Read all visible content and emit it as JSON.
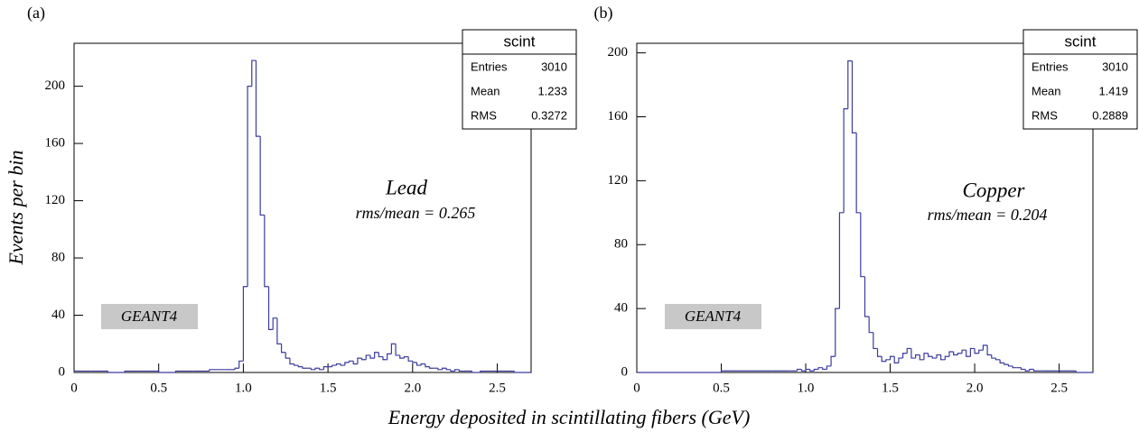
{
  "figure": {
    "x_label": "Energy deposited in scintillating fibers (GeV)",
    "y_label": "Events per bin"
  },
  "chart_data": [
    {
      "type": "histogram",
      "panel_label": "(a)",
      "annotation": "Lead",
      "sub_annotation": "rms/mean = 0.265",
      "tag": "GEANT4",
      "color": "#3b3b9e",
      "stats": {
        "title": "scint",
        "rows": [
          {
            "name": "Entries",
            "value": 3010
          },
          {
            "name": "Mean",
            "value": 1.233
          },
          {
            "name": "RMS",
            "value": 0.3272
          }
        ]
      },
      "bins": [
        0,
        0.1,
        0.2,
        0.3,
        0.4,
        0.5,
        0.6,
        0.7,
        0.8,
        0.9,
        0.925,
        0.95,
        0.975,
        1.0,
        1.025,
        1.05,
        1.075,
        1.1,
        1.125,
        1.15,
        1.175,
        1.2,
        1.225,
        1.25,
        1.275,
        1.3,
        1.325,
        1.35,
        1.375,
        1.4,
        1.425,
        1.45,
        1.475,
        1.5,
        1.525,
        1.55,
        1.575,
        1.6,
        1.625,
        1.65,
        1.675,
        1.7,
        1.725,
        1.75,
        1.775,
        1.8,
        1.825,
        1.85,
        1.875,
        1.9,
        1.925,
        1.95,
        1.975,
        2.0,
        2.025,
        2.05,
        2.075,
        2.1,
        2.125,
        2.15,
        2.175,
        2.2,
        2.225,
        2.25,
        2.275,
        2.3,
        2.325,
        2.35,
        2.375,
        2.4,
        2.5,
        2.6,
        2.7
      ],
      "values": [
        1,
        1,
        0,
        1,
        1,
        0,
        1,
        1,
        2,
        2,
        2,
        3,
        8,
        60,
        200,
        218,
        165,
        110,
        60,
        30,
        38,
        20,
        14,
        10,
        6,
        5,
        4,
        3,
        3,
        2,
        3,
        2,
        4,
        4,
        5,
        6,
        5,
        7,
        8,
        6,
        10,
        9,
        12,
        10,
        14,
        11,
        9,
        13,
        20,
        12,
        10,
        11,
        8,
        7,
        5,
        6,
        4,
        3,
        3,
        2,
        3,
        2,
        1,
        2,
        1,
        1,
        1,
        0,
        0,
        1,
        1,
        0
      ],
      "xlim": [
        0,
        2.7
      ],
      "ylim": [
        0,
        230
      ],
      "xticks": [
        0,
        0.5,
        {
          "value": 1,
          "label": "1.0"
        },
        1.5,
        {
          "value": 2,
          "label": "2.0"
        },
        2.5
      ],
      "yticks": [
        0,
        40,
        80,
        120,
        160,
        200
      ]
    },
    {
      "type": "histogram",
      "panel_label": "(b)",
      "annotation": "Copper",
      "sub_annotation": "rms/mean = 0.204",
      "tag": "GEANT4",
      "color": "#3b3b9e",
      "stats": {
        "title": "scint",
        "rows": [
          {
            "name": "Entries",
            "value": 3010
          },
          {
            "name": "Mean",
            "value": 1.419
          },
          {
            "name": "RMS",
            "value": 0.2889
          }
        ]
      },
      "bins": [
        0,
        0.1,
        0.2,
        0.3,
        0.4,
        0.5,
        0.6,
        0.7,
        0.8,
        0.9,
        0.925,
        0.95,
        0.975,
        1.0,
        1.025,
        1.05,
        1.075,
        1.1,
        1.125,
        1.15,
        1.175,
        1.2,
        1.225,
        1.25,
        1.275,
        1.3,
        1.325,
        1.35,
        1.375,
        1.4,
        1.425,
        1.45,
        1.475,
        1.5,
        1.525,
        1.55,
        1.575,
        1.6,
        1.625,
        1.65,
        1.675,
        1.7,
        1.725,
        1.75,
        1.775,
        1.8,
        1.825,
        1.85,
        1.875,
        1.9,
        1.925,
        1.95,
        1.975,
        2.0,
        2.025,
        2.05,
        2.075,
        2.1,
        2.125,
        2.15,
        2.175,
        2.2,
        2.225,
        2.25,
        2.275,
        2.3,
        2.325,
        2.35,
        2.375,
        2.4,
        2.5,
        2.6,
        2.7
      ],
      "values": [
        0,
        0,
        0,
        0,
        0,
        1,
        1,
        1,
        1,
        1,
        1,
        2,
        1,
        2,
        1,
        2,
        3,
        2,
        4,
        10,
        40,
        100,
        165,
        195,
        150,
        100,
        60,
        35,
        25,
        15,
        10,
        7,
        8,
        10,
        6,
        9,
        12,
        15,
        9,
        11,
        8,
        12,
        10,
        9,
        11,
        8,
        10,
        13,
        11,
        12,
        14,
        10,
        15,
        12,
        14,
        17,
        11,
        9,
        8,
        6,
        5,
        4,
        3,
        3,
        2,
        1,
        2,
        1,
        1,
        1,
        1,
        0
      ],
      "xlim": [
        0,
        2.7
      ],
      "ylim": [
        0,
        206
      ],
      "xticks": [
        0,
        0.5,
        {
          "value": 1,
          "label": "1.0"
        },
        1.5,
        {
          "value": 2,
          "label": "2.0"
        },
        2.5
      ],
      "yticks": [
        0,
        40,
        80,
        120,
        160,
        200
      ]
    }
  ]
}
